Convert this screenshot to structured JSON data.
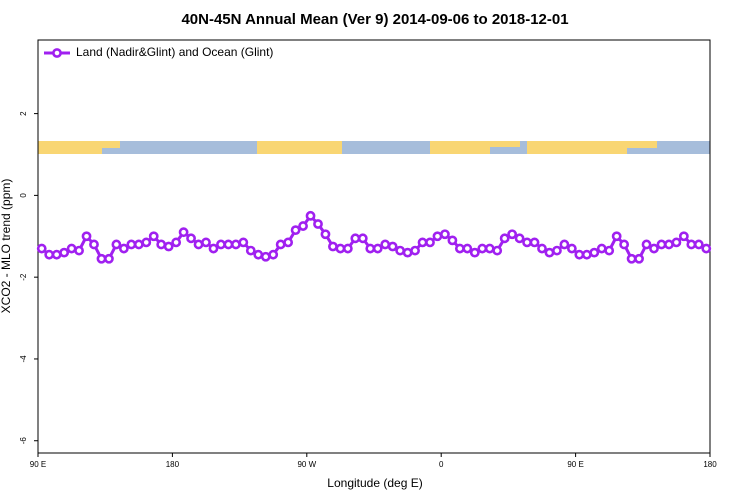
{
  "chart_data": {
    "type": "line",
    "title": "40N-45N Annual Mean (Ver 9)   2014-09-06 to 2018-12-01",
    "xlabel": "Longitude (deg E)",
    "ylabel": "XCO2 - MLO trend (ppm)",
    "legend": "top-left",
    "xlim": [
      90,
      540
    ],
    "xticks": [
      {
        "value": 90,
        "label": "90 E"
      },
      {
        "value": 180,
        "label": "180"
      },
      {
        "value": 270,
        "label": "90 W"
      },
      {
        "value": 360,
        "label": "0"
      },
      {
        "value": 450,
        "label": "90 E"
      },
      {
        "value": 540,
        "label": "180"
      }
    ],
    "ylim": [
      -6.3,
      3.8
    ],
    "yticks": [
      -6,
      -4,
      -2,
      0,
      2
    ],
    "x": [
      92.5,
      97.5,
      102.5,
      107.5,
      112.5,
      117.5,
      122.5,
      127.5,
      132.5,
      137.5,
      142.5,
      147.5,
      152.5,
      157.5,
      162.5,
      167.5,
      172.5,
      177.5,
      182.5,
      187.5,
      192.5,
      197.5,
      202.5,
      207.5,
      212.5,
      217.5,
      222.5,
      227.5,
      232.5,
      237.5,
      242.5,
      247.5,
      252.5,
      257.5,
      262.5,
      267.5,
      272.5,
      277.5,
      282.5,
      287.5,
      292.5,
      297.5,
      302.5,
      307.5,
      312.5,
      317.5,
      322.5,
      327.5,
      332.5,
      337.5,
      342.5,
      347.5,
      352.5,
      357.5,
      362.5,
      367.5,
      372.5,
      377.5,
      382.5,
      387.5,
      392.5,
      397.5,
      402.5,
      407.5,
      412.5,
      417.5,
      422.5,
      427.5,
      432.5,
      437.5,
      442.5,
      447.5,
      452.5,
      457.5,
      462.5,
      467.5,
      472.5,
      477.5,
      482.5,
      487.5,
      492.5,
      497.5,
      502.5,
      507.5,
      512.5,
      517.5,
      522.5,
      527.5,
      532.5,
      537.5
    ],
    "series": [
      {
        "name": "Land (Nadir&Glint) and Ocean (Glint)",
        "color": "#a020f0",
        "values": [
          -1.3,
          -1.45,
          -1.45,
          -1.4,
          -1.3,
          -1.35,
          -1.0,
          -1.2,
          -1.55,
          -1.55,
          -1.2,
          -1.3,
          -1.2,
          -1.2,
          -1.15,
          -1.0,
          -1.2,
          -1.25,
          -1.15,
          -0.9,
          -1.05,
          -1.2,
          -1.15,
          -1.3,
          -1.2,
          -1.2,
          -1.2,
          -1.15,
          -1.35,
          -1.45,
          -1.5,
          -1.45,
          -1.2,
          -1.15,
          -0.85,
          -0.75,
          -0.5,
          -0.7,
          -0.95,
          -1.25,
          -1.3,
          -1.3,
          -1.05,
          -1.05,
          -1.3,
          -1.3,
          -1.2,
          -1.25,
          -1.35,
          -1.4,
          -1.35,
          -1.15,
          -1.15,
          -1.0,
          -0.95,
          -1.1,
          -1.3,
          -1.3,
          -1.4,
          -1.3,
          -1.3,
          -1.35,
          -1.05,
          -0.95,
          -1.05,
          -1.15,
          -1.15,
          -1.3,
          -1.4,
          -1.35,
          -1.2,
          -1.3,
          -1.45,
          -1.45,
          -1.4,
          -1.3,
          -1.35,
          -1.0,
          -1.2,
          -1.55,
          -1.55,
          -1.2,
          -1.3,
          -1.2,
          -1.2,
          -1.15,
          -1.0,
          -1.2,
          -1.2,
          -1.3
        ]
      }
    ]
  }
}
